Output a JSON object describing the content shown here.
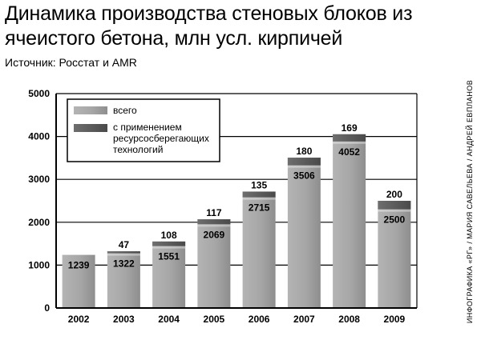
{
  "header": {
    "title": "Динамика производства стеновых блоков из ячеистого бетона, млн усл. кирпичей",
    "source": "Источник: Росстат и AMR",
    "credit": "ИНФОГРАФИКА «РГ» / МАРИЯ САВЕЛЬЕВА / АНДРЕЙ ЕВПЛАНОВ"
  },
  "colors": {
    "total": "#a8a8a8",
    "resource_saving": "#5a5a5a",
    "background": "#ffffff"
  },
  "chart_data": {
    "type": "bar",
    "stacked": true,
    "title": "Динамика производства стеновых блоков из ячеистого бетона, млн усл. кирпичей",
    "categories": [
      "2002",
      "2003",
      "2004",
      "2005",
      "2006",
      "2007",
      "2008",
      "2009"
    ],
    "series": [
      {
        "name": "всего",
        "values": [
          1239,
          1322,
          1551,
          2069,
          2715,
          3506,
          4052,
          2500
        ]
      },
      {
        "name": "с применением ресурсосберегающих технологий",
        "values": [
          null,
          47,
          108,
          117,
          135,
          180,
          169,
          200
        ]
      }
    ],
    "ylim": [
      0,
      5000
    ],
    "yticks": [
      0,
      1000,
      2000,
      3000,
      4000,
      5000
    ],
    "grid": true,
    "legend": "top-left",
    "xlabel": "",
    "ylabel": ""
  }
}
